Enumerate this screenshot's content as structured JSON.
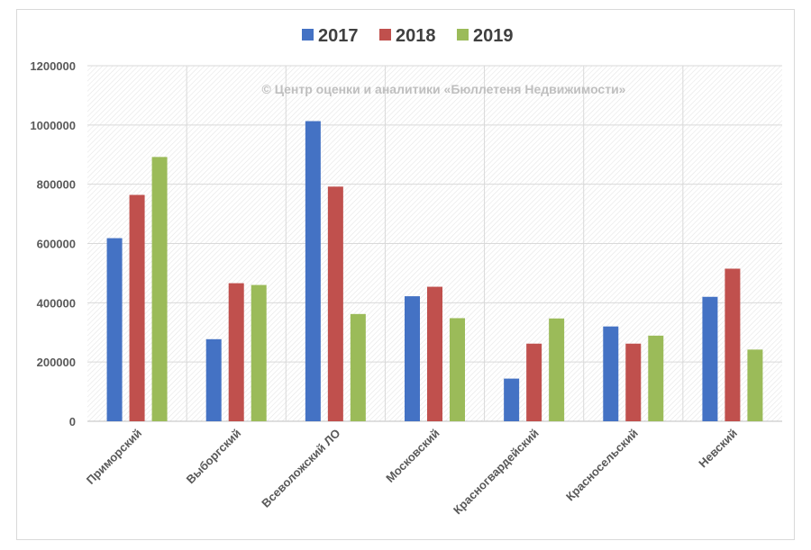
{
  "chart_data": {
    "type": "bar",
    "watermark": "© Центр оценки и аналитики «Бюллетеня Недвижимости»",
    "categories": [
      "Приморский",
      "Выборгский",
      "Всеволожский ЛО",
      "Московский",
      "Красногвардейский",
      "Красносельский",
      "Невский"
    ],
    "series": [
      {
        "name": "2017",
        "color": "#4472c4",
        "values": [
          618000,
          277000,
          1013000,
          422000,
          144000,
          320000,
          420000
        ]
      },
      {
        "name": "2018",
        "color": "#c0504d",
        "values": [
          764000,
          466000,
          792000,
          454000,
          262000,
          262000,
          515000
        ]
      },
      {
        "name": "2019",
        "color": "#9bbb59",
        "values": [
          892000,
          460000,
          362000,
          348000,
          347000,
          289000,
          242000
        ]
      }
    ],
    "ylim": [
      0,
      1200000
    ],
    "yticks": [
      "0",
      "200000",
      "400000",
      "600000",
      "800000",
      "1000000",
      "1200000"
    ],
    "legend_position": "top",
    "grid": true,
    "xlabel": "",
    "ylabel": ""
  }
}
